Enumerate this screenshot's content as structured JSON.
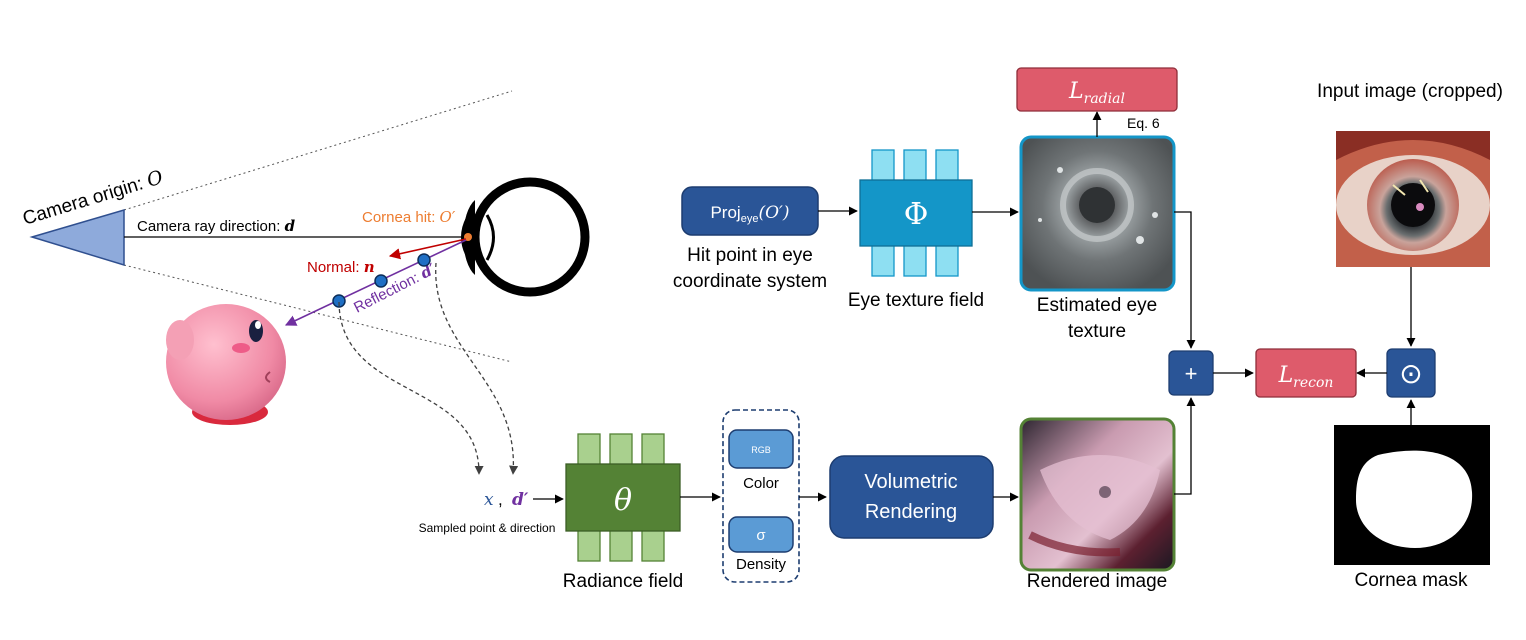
{
  "camera": {
    "origin_label": "Camera origin: ",
    "origin_symbol": "O",
    "ray_label": "Camera ray direction: ",
    "ray_symbol": "d",
    "cornea_hit_label": "Cornea hit: ",
    "cornea_hit_symbol": "O′",
    "normal_label": "Normal: ",
    "normal_symbol": "n",
    "reflection_label": "Reflection: ",
    "reflection_symbol": "d′"
  },
  "proj": {
    "label_main": "Proj",
    "label_sub": "eye",
    "label_arg": "(O′)",
    "caption_line1": "Hit point in eye",
    "caption_line2": "coordinate system"
  },
  "phi": {
    "symbol": "Φ",
    "caption": "Eye texture field"
  },
  "estimated": {
    "caption_line1": "Estimated eye",
    "caption_line2": "texture"
  },
  "l_radial": {
    "symbol": "L",
    "sub": "radial",
    "eq": "Eq. 6"
  },
  "input_image": {
    "caption": "Input image (cropped)"
  },
  "cornea_mask": {
    "caption": "Cornea mask"
  },
  "plus": {
    "symbol": "+"
  },
  "odot": {
    "symbol": "⊙"
  },
  "l_recon": {
    "symbol": "L",
    "sub": "recon"
  },
  "sampled": {
    "x_symbol": "x",
    "comma": ",",
    "d_symbol": "d′",
    "caption": "Sampled point & direction"
  },
  "theta": {
    "symbol": "θ",
    "caption": "Radiance field"
  },
  "outputs": {
    "rgb_label": "RGB",
    "color_label": "Color",
    "sigma_label": "σ",
    "density_label": "Density"
  },
  "volumetric": {
    "line1": "Volumetric",
    "line2": "Rendering"
  },
  "rendered": {
    "caption": "Rendered image"
  },
  "colors": {
    "dark_blue": "#2a5597",
    "cyan": "#1496c8",
    "light_cyan": "#8edff2",
    "green": "#548235",
    "light_green": "#a9d08e",
    "red_box": "#de5b6b",
    "light_blue": "#5b9bd5",
    "camera_fill": "#8eaadb",
    "normal_red": "#c00000",
    "reflection_purple": "#7030a0",
    "cornea_orange": "#ed7d31"
  }
}
